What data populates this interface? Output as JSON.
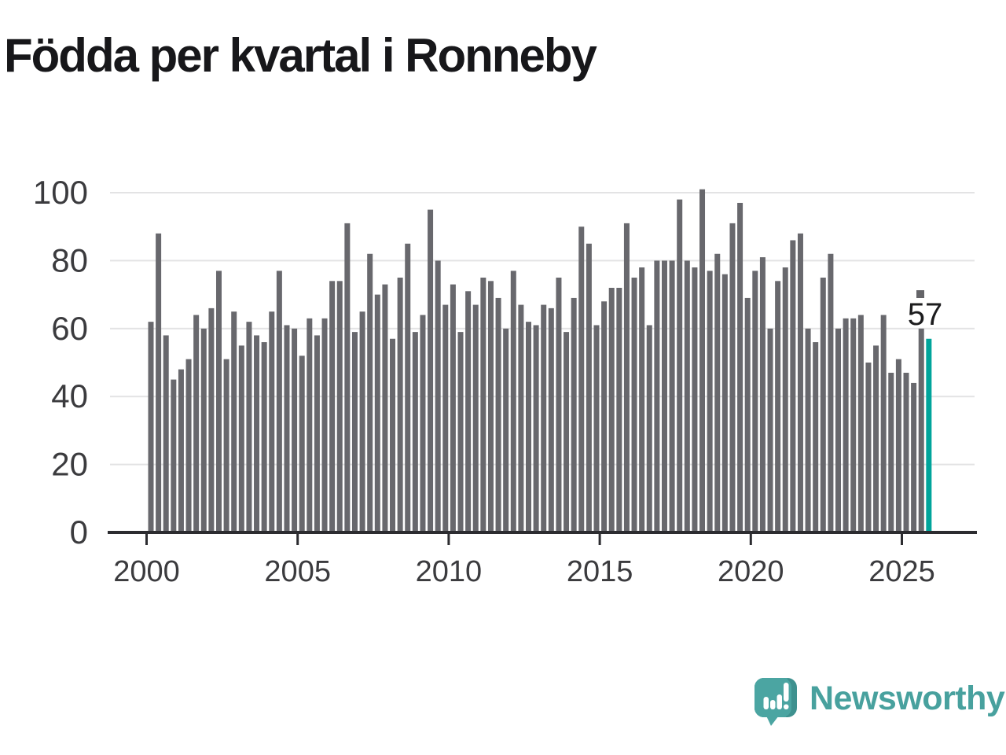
{
  "title": "Födda per kvartal i Ronneby",
  "annotation": {
    "label": "57",
    "marker_color": "#646468",
    "text_color": "#1c1c1e"
  },
  "branding": {
    "name": "Newsworthy",
    "logo_color": "#4ba5a2",
    "logo_shade_color": "#3e918f",
    "text_color": "#48a19e"
  },
  "chart_data": {
    "type": "bar",
    "title": "Födda per kvartal i Ronneby",
    "series_start": "2000-Q1",
    "series_end": "2025-Q4",
    "period": "quarterly",
    "values": [
      62,
      88,
      58,
      45,
      48,
      51,
      64,
      60,
      66,
      77,
      51,
      65,
      55,
      62,
      58,
      56,
      65,
      77,
      61,
      60,
      52,
      63,
      58,
      63,
      74,
      74,
      91,
      59,
      65,
      82,
      70,
      73,
      57,
      75,
      85,
      59,
      64,
      95,
      80,
      67,
      73,
      59,
      71,
      67,
      75,
      74,
      69,
      60,
      77,
      67,
      62,
      61,
      67,
      66,
      75,
      59,
      69,
      90,
      85,
      61,
      68,
      72,
      72,
      91,
      75,
      78,
      61,
      80,
      80,
      80,
      98,
      80,
      78,
      101,
      77,
      82,
      76,
      91,
      97,
      69,
      77,
      81,
      60,
      74,
      78,
      86,
      88,
      60,
      56,
      75,
      82,
      60,
      63,
      63,
      64,
      50,
      55,
      64,
      47,
      51,
      47,
      44,
      60,
      57
    ],
    "highlight": {
      "index": 103,
      "value": 57,
      "color": "#00a49b"
    },
    "bar_color": "#68686d",
    "x_tick_labels": [
      "2000",
      "2005",
      "2010",
      "2015",
      "2020",
      "2025"
    ],
    "y_ticks": [
      0,
      20,
      40,
      60,
      80,
      100
    ],
    "ylim": [
      0,
      105
    ],
    "grid": true,
    "grid_color": "#e3e3e4",
    "axis_color": "#2c2c30",
    "tick_label_color": "#3b3b3e",
    "legend": "none",
    "xlabel": "",
    "ylabel": ""
  }
}
